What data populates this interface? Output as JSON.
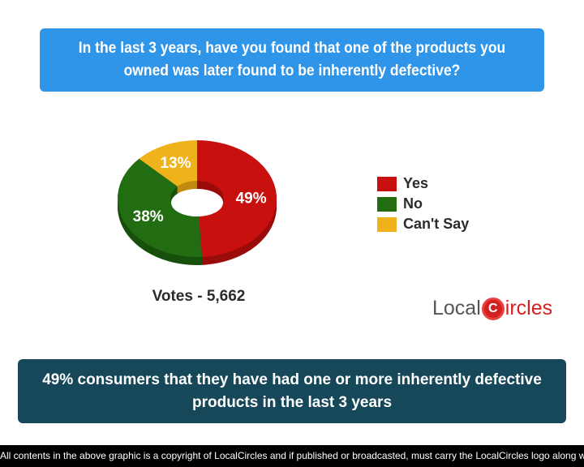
{
  "question": "In the last 3 years, have you found that one of the products you owned was later found to be inherently defective?",
  "result": "49% consumers that they have had one or more inherently defective products in the last 3 years",
  "votes": "Votes - 5,662",
  "logo": {
    "part1": "Local",
    "part2": "ircles",
    "letter": "C"
  },
  "footer": "All contents in the above graphic is a copyright of LocalCircles and if published or broadcasted, must carry the LocalCircles logo along with it.",
  "chart_data": {
    "type": "pie",
    "style": "3d-donut",
    "categories": [
      "Yes",
      "No",
      "Can't Say"
    ],
    "values": [
      49,
      38,
      13
    ],
    "labels": [
      "49%",
      "38%",
      "13%"
    ],
    "colors": [
      "#c8100e",
      "#226d12",
      "#f0b21b"
    ],
    "side_colors": [
      "#9a0c0a",
      "#17500c",
      "#c08a10"
    ],
    "legend_position": "right"
  }
}
